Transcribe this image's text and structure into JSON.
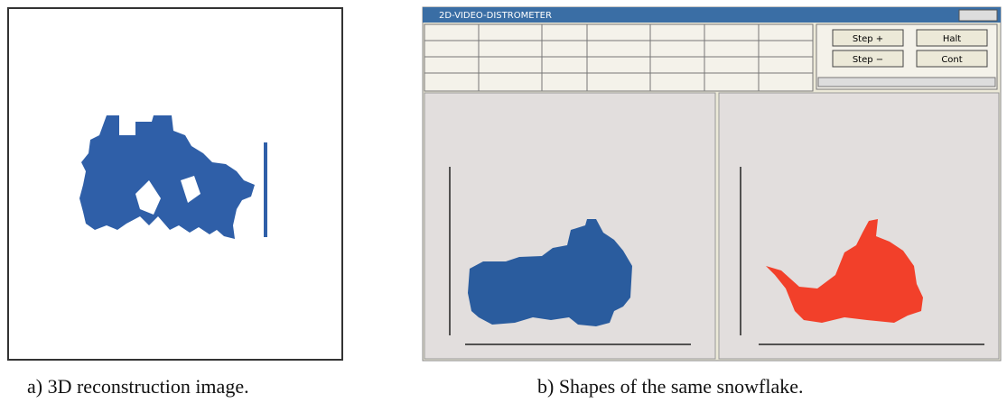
{
  "panels": [
    {
      "caption": "a) 3D reconstruction image."
    },
    {
      "caption": "b) Shapes of the same snowflake.",
      "window": {
        "title": "2D-VIDEO-DISTROMETER",
        "buttons": [
          "Step +",
          "Halt",
          "Step −",
          "Cont"
        ]
      }
    }
  ]
}
